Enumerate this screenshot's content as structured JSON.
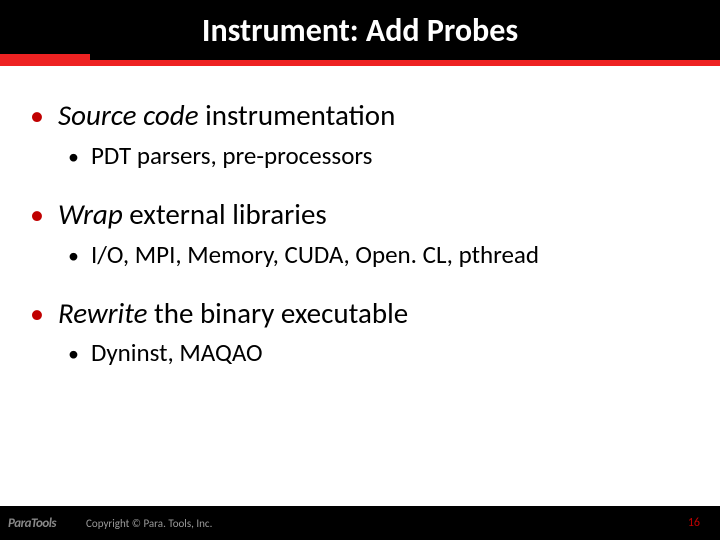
{
  "header": {
    "title": "Instrument: Add Probes",
    "background_color": "#000000",
    "title_color": "#ffffff",
    "title_fontsize": 32
  },
  "accent": {
    "color": "#ee2222"
  },
  "bullets": [
    {
      "italic": "Source code",
      "rest": " instrumentation",
      "sub": "PDT parsers, pre-processors"
    },
    {
      "italic": "Wrap",
      "rest": " external libraries",
      "sub": "I/O, MPI, Memory, CUDA, Open. CL, pthread"
    },
    {
      "italic": "Rewrite",
      "rest": " the binary executable",
      "sub": "Dyninst, MAQAO"
    }
  ],
  "style": {
    "main_bullet_color": "#c00000",
    "main_text_fontsize": 29,
    "sub_text_fontsize": 25,
    "text_color": "#000000"
  },
  "footer": {
    "logo": "ParaTools",
    "copyright": "Copyright © Para. Tools, Inc.",
    "page_number": "16",
    "background_color": "#000000",
    "page_color": "#c00000"
  }
}
